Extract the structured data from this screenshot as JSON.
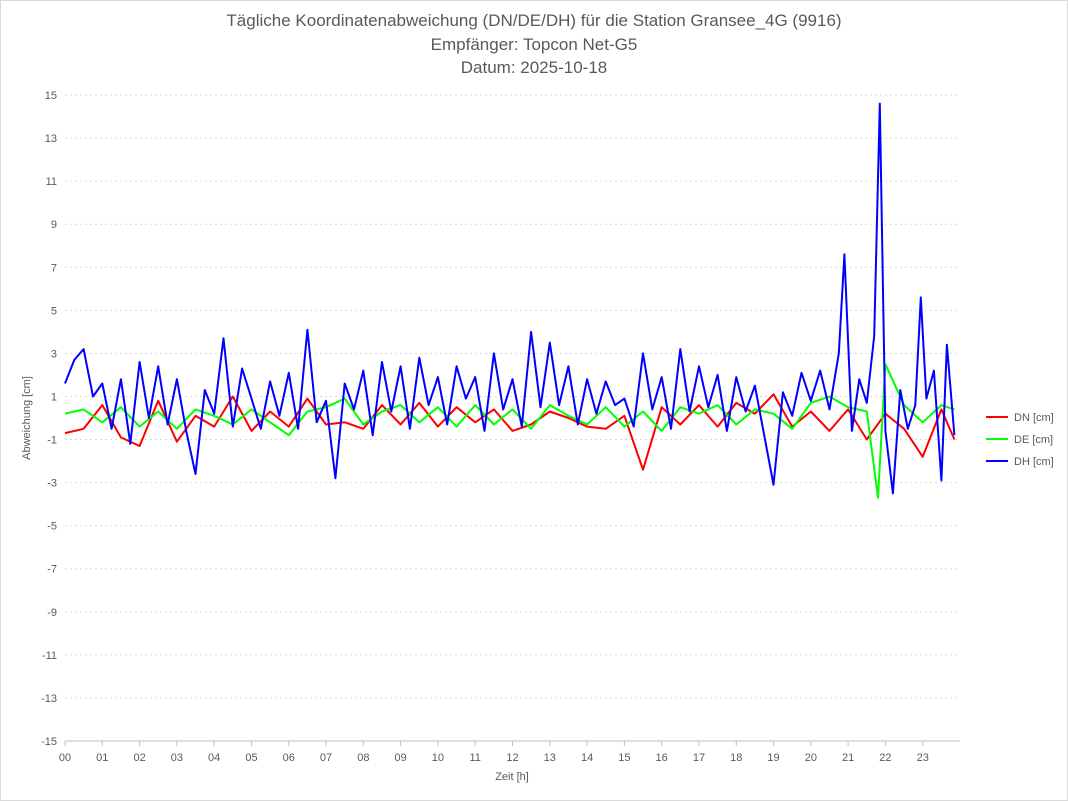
{
  "chart_data": {
    "type": "line",
    "title": [
      "Tägliche Koordinatenabweichung (DN/DE/DH) für die Station Gransee_4G (9916)",
      "Empfänger: Topcon Net-G5",
      "Datum: 2025-10-18"
    ],
    "xlabel": "Zeit [h]",
    "ylabel": "Abweichung [cm]",
    "xlim": [
      0,
      24
    ],
    "ylim": [
      -15,
      15
    ],
    "x_ticks": [
      "00",
      "01",
      "02",
      "03",
      "04",
      "05",
      "06",
      "07",
      "08",
      "09",
      "10",
      "11",
      "12",
      "13",
      "14",
      "15",
      "16",
      "17",
      "18",
      "19",
      "20",
      "21",
      "22",
      "23"
    ],
    "y_ticks": [
      15,
      13,
      11,
      9,
      7,
      5,
      3,
      1,
      -1,
      -3,
      -5,
      -7,
      -9,
      -11,
      -13,
      -15
    ],
    "grid": true,
    "legend": "right",
    "series": [
      {
        "name": "DN [cm]",
        "color": "#ff0000",
        "x": [
          0.0,
          0.5,
          1.0,
          1.5,
          2.0,
          2.5,
          3.0,
          3.5,
          4.0,
          4.5,
          5.0,
          5.5,
          6.0,
          6.5,
          7.0,
          7.5,
          8.0,
          8.5,
          9.0,
          9.5,
          10.0,
          10.5,
          11.0,
          11.5,
          12.0,
          12.5,
          13.0,
          13.5,
          14.0,
          14.5,
          15.0,
          15.5,
          16.0,
          16.5,
          17.0,
          17.5,
          18.0,
          18.5,
          19.0,
          19.5,
          20.0,
          20.5,
          21.0,
          21.5,
          22.0,
          22.5,
          23.0,
          23.5,
          23.85
        ],
        "y": [
          -0.7,
          -0.5,
          0.6,
          -0.9,
          -1.3,
          0.8,
          -1.1,
          0.1,
          -0.4,
          1.0,
          -0.6,
          0.3,
          -0.4,
          0.9,
          -0.3,
          -0.2,
          -0.5,
          0.6,
          -0.3,
          0.7,
          -0.4,
          0.5,
          -0.2,
          0.4,
          -0.6,
          -0.3,
          0.3,
          0.0,
          -0.4,
          -0.5,
          0.1,
          -2.4,
          0.5,
          -0.3,
          0.6,
          -0.4,
          0.7,
          0.2,
          1.1,
          -0.4,
          0.3,
          -0.6,
          0.4,
          -1.0,
          0.2,
          -0.5,
          -1.8,
          0.4,
          -1.0
        ]
      },
      {
        "name": "DE [cm]",
        "color": "#00ff00",
        "x": [
          0.0,
          0.5,
          1.0,
          1.5,
          2.0,
          2.5,
          3.0,
          3.5,
          4.0,
          4.5,
          5.0,
          5.5,
          6.0,
          6.5,
          7.0,
          7.5,
          8.0,
          8.5,
          9.0,
          9.5,
          10.0,
          10.5,
          11.0,
          11.5,
          12.0,
          12.5,
          13.0,
          13.5,
          14.0,
          14.5,
          15.0,
          15.5,
          16.0,
          16.5,
          17.0,
          17.5,
          18.0,
          18.5,
          19.0,
          19.5,
          20.0,
          20.5,
          21.0,
          21.5,
          21.8,
          22.0,
          22.5,
          23.0,
          23.5,
          23.85
        ],
        "y": [
          0.2,
          0.4,
          -0.2,
          0.5,
          -0.4,
          0.3,
          -0.5,
          0.4,
          0.1,
          -0.3,
          0.4,
          -0.2,
          -0.8,
          0.3,
          0.5,
          0.9,
          -0.3,
          0.3,
          0.6,
          -0.2,
          0.5,
          -0.4,
          0.6,
          -0.3,
          0.4,
          -0.5,
          0.6,
          0.1,
          -0.3,
          0.5,
          -0.4,
          0.3,
          -0.6,
          0.5,
          0.2,
          0.6,
          -0.3,
          0.4,
          0.2,
          -0.5,
          0.7,
          1.0,
          0.5,
          0.3,
          -3.7,
          2.5,
          0.6,
          -0.2,
          0.6,
          0.4
        ]
      },
      {
        "name": "DH [cm]",
        "color": "#0000ff",
        "x": [
          0.0,
          0.25,
          0.5,
          0.75,
          1.0,
          1.25,
          1.5,
          1.75,
          2.0,
          2.25,
          2.5,
          2.75,
          3.0,
          3.25,
          3.5,
          3.75,
          4.0,
          4.25,
          4.5,
          4.75,
          5.0,
          5.25,
          5.5,
          5.75,
          6.0,
          6.25,
          6.5,
          6.75,
          7.0,
          7.25,
          7.5,
          7.75,
          8.0,
          8.25,
          8.5,
          8.75,
          9.0,
          9.25,
          9.5,
          9.75,
          10.0,
          10.25,
          10.5,
          10.75,
          11.0,
          11.25,
          11.5,
          11.75,
          12.0,
          12.25,
          12.5,
          12.75,
          13.0,
          13.25,
          13.5,
          13.75,
          14.0,
          14.25,
          14.5,
          14.75,
          15.0,
          15.25,
          15.5,
          15.75,
          16.0,
          16.25,
          16.5,
          16.75,
          17.0,
          17.25,
          17.5,
          17.75,
          18.0,
          18.25,
          18.5,
          18.75,
          19.0,
          19.25,
          19.5,
          19.75,
          20.0,
          20.25,
          20.5,
          20.75,
          20.9,
          21.1,
          21.3,
          21.5,
          21.7,
          21.85,
          22.0,
          22.2,
          22.4,
          22.6,
          22.8,
          22.95,
          23.1,
          23.3,
          23.5,
          23.65,
          23.85
        ],
        "y": [
          1.6,
          2.7,
          3.2,
          1.0,
          1.6,
          -0.5,
          1.8,
          -1.2,
          2.6,
          0.0,
          2.4,
          -0.3,
          1.8,
          -0.6,
          -2.6,
          1.3,
          0.2,
          3.7,
          -0.4,
          2.3,
          0.9,
          -0.5,
          1.7,
          0.1,
          2.1,
          -0.5,
          4.1,
          -0.2,
          0.8,
          -2.8,
          1.6,
          0.4,
          2.2,
          -0.8,
          2.6,
          0.3,
          2.4,
          -0.5,
          2.8,
          0.6,
          1.9,
          -0.3,
          2.4,
          0.9,
          1.9,
          -0.6,
          3.0,
          0.4,
          1.8,
          -0.4,
          4.0,
          0.5,
          3.5,
          0.6,
          2.4,
          -0.3,
          1.8,
          0.2,
          1.7,
          0.6,
          0.9,
          -0.4,
          3.0,
          0.4,
          1.9,
          -0.5,
          3.2,
          0.3,
          2.4,
          0.5,
          2.0,
          -0.6,
          1.9,
          0.3,
          1.5,
          -0.8,
          -3.1,
          1.2,
          0.1,
          2.1,
          0.8,
          2.2,
          0.4,
          3.0,
          7.6,
          -0.6,
          1.8,
          0.7,
          3.8,
          14.6,
          -0.6,
          -3.5,
          1.3,
          -0.5,
          0.6,
          5.6,
          0.9,
          2.2,
          -2.9,
          3.4,
          -0.8
        ]
      }
    ]
  }
}
